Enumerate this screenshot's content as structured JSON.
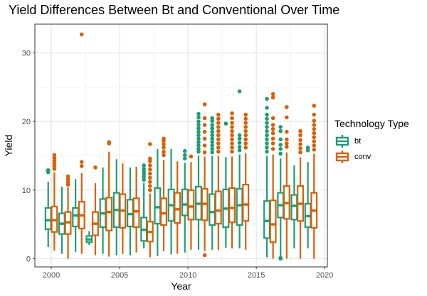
{
  "chart_data": {
    "type": "box",
    "title": "Yield Differences Between Bt and Conventional Over Time",
    "xlabel": "Year",
    "ylabel": "Yield",
    "xlim": [
      1998.8,
      2020.2
    ],
    "ylim": [
      -1.2,
      34.2
    ],
    "x_ticks": [
      2000,
      2005,
      2010,
      2015,
      2020
    ],
    "y_ticks": [
      0,
      10,
      20,
      30
    ],
    "grid": true,
    "legend_title": "Technology Type",
    "legend_position": "right",
    "series": [
      {
        "name": "bt",
        "color": "#1b9e77",
        "boxes": [
          {
            "year": 2000,
            "low": 1.7,
            "q1": 4.3,
            "median": 5.6,
            "q3": 7.4,
            "high": 11.2,
            "outliers": [
              12.6,
              12.8,
              12.9
            ]
          },
          {
            "year": 2001,
            "low": 0.7,
            "q1": 3.6,
            "median": 5.1,
            "q3": 6.6,
            "high": 10.5,
            "outliers": []
          },
          {
            "year": 2002,
            "low": 1.0,
            "q1": 4.7,
            "median": 6.3,
            "q3": 7.4,
            "high": 11.6,
            "outliers": []
          },
          {
            "year": 2003,
            "low": 2.0,
            "q1": 2.4,
            "median": 2.8,
            "q3": 3.3,
            "high": 4.0,
            "outliers": []
          },
          {
            "year": 2004,
            "low": 0.7,
            "q1": 4.6,
            "median": 6.6,
            "q3": 8.7,
            "high": 13.3,
            "outliers": []
          },
          {
            "year": 2005,
            "low": 0.5,
            "q1": 4.6,
            "median": 7.1,
            "q3": 9.6,
            "high": 14.5,
            "outliers": []
          },
          {
            "year": 2006,
            "low": 0.5,
            "q1": 4.7,
            "median": 6.5,
            "q3": 8.6,
            "high": 13.3,
            "outliers": []
          },
          {
            "year": 2007,
            "low": 1.5,
            "q1": 2.6,
            "median": 4.2,
            "q3": 6.0,
            "high": 11.0,
            "outliers": [
              11.5,
              11.9,
              12.3,
              12.7,
              13.1,
              13.6
            ]
          },
          {
            "year": 2008,
            "low": 0.4,
            "q1": 5.1,
            "median": 7.5,
            "q3": 10.3,
            "high": 16.0,
            "outliers": []
          },
          {
            "year": 2009,
            "low": 0.6,
            "q1": 5.5,
            "median": 7.8,
            "q3": 10.1,
            "high": 16.0,
            "outliers": []
          },
          {
            "year": 2010,
            "low": 0.9,
            "q1": 6.3,
            "median": 7.9,
            "q3": 10.1,
            "high": 14.0,
            "outliers": [
              14.6,
              15.1,
              15.7
            ]
          },
          {
            "year": 2011,
            "low": 1.3,
            "q1": 5.7,
            "median": 8.0,
            "q3": 10.5,
            "high": 15.0,
            "outliers": [
              15.6,
              16.0,
              16.5,
              17.0,
              17.5,
              18.0,
              18.5,
              19.0,
              19.5,
              20.0,
              20.6,
              21.1
            ]
          },
          {
            "year": 2012,
            "low": 1.3,
            "q1": 4.9,
            "median": 6.8,
            "q3": 9.4,
            "high": 15.0,
            "outliers": [
              15.5,
              16.0,
              16.5,
              17.0,
              17.5,
              18.0,
              18.5,
              19.0,
              19.5,
              20.1,
              20.5
            ]
          },
          {
            "year": 2013,
            "low": 1.6,
            "q1": 4.6,
            "median": 7.3,
            "q3": 10.1,
            "high": 14.8,
            "outliers": [
              19.7
            ]
          },
          {
            "year": 2014,
            "low": 1.5,
            "q1": 4.9,
            "median": 7.8,
            "q3": 10.2,
            "high": 15.2,
            "outliers": [
              15.8,
              16.3,
              16.9,
              17.5,
              18.0,
              24.4
            ]
          },
          {
            "year": 2016,
            "low": 0.2,
            "q1": 3.0,
            "median": 5.5,
            "q3": 8.4,
            "high": 15.0,
            "outliers": [
              15.6,
              16.2,
              16.8,
              17.4,
              18.0,
              18.6,
              19.2,
              19.8,
              20.4,
              21.0,
              22.0,
              23.3
            ]
          },
          {
            "year": 2017,
            "low": 0.0,
            "q1": 6.0,
            "median": 7.8,
            "q3": 9.6,
            "high": 14.6,
            "outliers": [
              0.0,
              0.05,
              0.1,
              15.3,
              16.0,
              16.6,
              17.4,
              18.6,
              19.2
            ]
          },
          {
            "year": 2018,
            "low": 1.5,
            "q1": 5.7,
            "median": 7.7,
            "q3": 9.3,
            "high": 13.6,
            "outliers": []
          },
          {
            "year": 2019,
            "low": 1.5,
            "q1": 4.6,
            "median": 6.2,
            "q3": 8.0,
            "high": 14.1,
            "outliers": [
              15.8,
              16.2
            ]
          }
        ]
      },
      {
        "name": "conv",
        "color": "#d95f02",
        "boxes": [
          {
            "year": 2000,
            "low": 1.2,
            "q1": 3.9,
            "median": 5.6,
            "q3": 7.6,
            "high": 12.6,
            "outliers": [
              13.1,
              13.5,
              13.9,
              14.3,
              14.7,
              15.1
            ]
          },
          {
            "year": 2001,
            "low": 0.0,
            "q1": 3.6,
            "median": 5.3,
            "q3": 6.8,
            "high": 10.4,
            "outliers": [
              10.8,
              11.2,
              11.6,
              12.0
            ]
          },
          {
            "year": 2002,
            "low": 0.7,
            "q1": 4.4,
            "median": 6.3,
            "q3": 8.3,
            "high": 12.5,
            "outliers": [
              13.5,
              14.1,
              32.7
            ]
          },
          {
            "year": 2003,
            "low": 0.5,
            "q1": 3.4,
            "median": 5.1,
            "q3": 6.8,
            "high": 11.0,
            "outliers": [
              13.3
            ]
          },
          {
            "year": 2004,
            "low": 0.3,
            "q1": 4.1,
            "median": 6.8,
            "q3": 8.9,
            "high": 15.6,
            "outliers": [
              16.8,
              17.0
            ]
          },
          {
            "year": 2005,
            "low": 0.7,
            "q1": 4.5,
            "median": 7.0,
            "q3": 9.4,
            "high": 13.9,
            "outliers": []
          },
          {
            "year": 2006,
            "low": 0.9,
            "q1": 4.6,
            "median": 6.9,
            "q3": 8.8,
            "high": 13.4,
            "outliers": []
          },
          {
            "year": 2007,
            "low": 0.2,
            "q1": 2.5,
            "median": 3.9,
            "q3": 5.4,
            "high": 9.5,
            "outliers": [
              10.0,
              10.6,
              11.2,
              11.8,
              12.4,
              13.0,
              13.6,
              14.2,
              14.6,
              16.7
            ]
          },
          {
            "year": 2008,
            "low": 1.1,
            "q1": 4.9,
            "median": 6.6,
            "q3": 8.8,
            "high": 14.4,
            "outliers": [
              15.1,
              15.6,
              16.2,
              16.7,
              17.2,
              17.5
            ]
          },
          {
            "year": 2009,
            "low": 0.7,
            "q1": 5.2,
            "median": 7.2,
            "q3": 9.6,
            "high": 14.2,
            "outliers": []
          },
          {
            "year": 2010,
            "low": 1.3,
            "q1": 5.7,
            "median": 7.6,
            "q3": 10.0,
            "high": 14.1,
            "outliers": [
              14.9
            ]
          },
          {
            "year": 2011,
            "low": 1.1,
            "q1": 5.6,
            "median": 8.0,
            "q3": 10.2,
            "high": 14.9,
            "outliers": [
              0.5,
              15.5,
              16.5,
              17.5,
              18.5,
              19.5,
              20.5,
              22.5
            ]
          },
          {
            "year": 2012,
            "low": 1.3,
            "q1": 5.1,
            "median": 7.0,
            "q3": 9.8,
            "high": 15.0,
            "outliers": [
              15.6,
              16.2,
              16.8,
              17.4,
              18.0,
              18.6,
              19.2,
              19.8,
              20.4,
              21.0
            ]
          },
          {
            "year": 2013,
            "low": 1.5,
            "q1": 5.3,
            "median": 7.4,
            "q3": 10.3,
            "high": 14.9,
            "outliers": [
              15.6,
              16.2,
              16.8,
              17.4,
              18.0,
              18.6,
              19.2,
              19.8,
              20.5,
              21.2
            ]
          },
          {
            "year": 2014,
            "low": 1.3,
            "q1": 5.5,
            "median": 7.9,
            "q3": 10.8,
            "high": 15.4,
            "outliers": [
              16.2,
              16.8,
              17.4,
              18.0,
              18.6,
              19.2,
              19.8,
              20.4,
              21.0
            ]
          },
          {
            "year": 2016,
            "low": 0.0,
            "q1": 2.4,
            "median": 5.0,
            "q3": 8.5,
            "high": 15.2,
            "outliers": [
              16.0,
              16.8,
              17.5,
              18.3,
              18.9,
              19.5,
              20.5,
              23.5,
              24.0
            ]
          },
          {
            "year": 2017,
            "low": 0.0,
            "q1": 5.8,
            "median": 8.1,
            "q3": 10.6,
            "high": 15.5,
            "outliers": [
              16.3,
              16.8,
              17.4,
              18.5,
              20.6,
              22.1
            ]
          },
          {
            "year": 2018,
            "low": 0.0,
            "q1": 5.5,
            "median": 8.0,
            "q3": 10.6,
            "high": 14.8,
            "outliers": [
              15.5,
              16.1,
              16.7,
              17.3,
              18.0,
              18.6
            ]
          },
          {
            "year": 2019,
            "low": 0.0,
            "q1": 4.5,
            "median": 7.0,
            "q3": 9.6,
            "high": 15.3,
            "outliers": [
              15.9,
              16.5,
              17.1,
              17.7,
              18.3,
              18.9,
              19.5,
              20.1,
              21.0,
              22.3
            ]
          }
        ]
      }
    ]
  }
}
